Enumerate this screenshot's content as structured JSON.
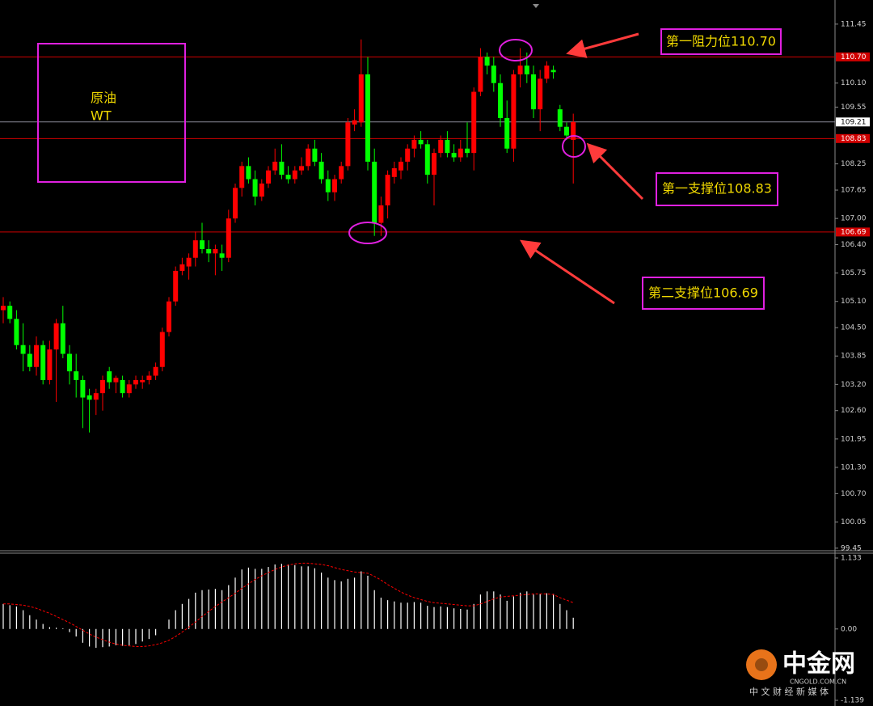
{
  "chart_data": [
    {
      "type": "candlestick",
      "instrument": [
        "原油",
        "WT"
      ],
      "annotations": [
        "第一阻力位110.70",
        "第一支撑位108.83",
        "第二支撑位106.69"
      ],
      "ylim": [
        99.41,
        111.91
      ],
      "yticks": [
        111.45,
        {
          "value": 110.1,
          "label": "110.10"
        },
        109.55,
        108.25,
        107.65,
        {
          "value": 107,
          "label": "107.00"
        },
        {
          "value": 106.4,
          "label": "106.40"
        },
        105.75,
        {
          "value": 105.1,
          "label": "105.10"
        },
        {
          "value": 104.5,
          "label": "104.50"
        },
        103.85,
        {
          "value": 103.2,
          "label": "103.20"
        },
        {
          "value": 102.6,
          "label": "102.60"
        },
        101.95,
        {
          "value": 101.3,
          "label": "101.30"
        },
        {
          "value": 100.7,
          "label": "100.70"
        },
        100.05,
        99.45
      ],
      "hlines": [
        {
          "value": 110.7,
          "label": "110.70",
          "color": "#d00000",
          "label_color": "#ffffff"
        },
        {
          "value": 109.21,
          "label": "109.21",
          "color": "#8a8a99",
          "label_color": "#000000"
        },
        {
          "value": 108.83,
          "label": "108.83",
          "color": "#d00000",
          "label_color": "#ffffff"
        },
        {
          "value": 106.69,
          "label": "106.69",
          "color": "#d00000",
          "label_color": "#ffffff"
        }
      ],
      "up_color": "#ff0000",
      "down_color": "#00ff00",
      "open": [
        104.9,
        105.0,
        104.7,
        104.1,
        103.9,
        103.6,
        104.1,
        103.3,
        104.0,
        104.6,
        103.9,
        103.5,
        103.3,
        102.95,
        102.85,
        103.0,
        103.5,
        103.25,
        103.3,
        103.0,
        103.2,
        103.25,
        103.3,
        103.4,
        103.6,
        104.4,
        105.1,
        105.8,
        105.9,
        106.1,
        106.5,
        106.3,
        106.2,
        106.2,
        106.1,
        107.0,
        107.7,
        108.2,
        107.9,
        107.5,
        107.8,
        108.1,
        108.3,
        108.0,
        107.9,
        108.1,
        108.2,
        108.6,
        108.3,
        107.9,
        107.6,
        107.9,
        108.2,
        109.15,
        109.2,
        110.3,
        108.3,
        106.9,
        107.3,
        107.95,
        108.1,
        108.3,
        108.6,
        108.8,
        108.7,
        108.0,
        108.5,
        108.8,
        108.5,
        108.4,
        108.6,
        108.5,
        109.9,
        110.7,
        110.5,
        110.1,
        109.3,
        108.6,
        110.3,
        110.5,
        110.3,
        109.5,
        110.2,
        110.4,
        109.5,
        109.1,
        108.8
      ],
      "high": [
        105.2,
        105.1,
        104.9,
        104.6,
        104.1,
        104.3,
        104.2,
        104.2,
        104.7,
        105.0,
        104.1,
        103.9,
        103.4,
        103.1,
        103.1,
        103.4,
        103.6,
        103.4,
        103.4,
        103.3,
        103.4,
        103.4,
        103.5,
        103.7,
        104.5,
        105.2,
        105.9,
        106.1,
        106.2,
        106.7,
        106.9,
        106.5,
        106.4,
        106.4,
        107.2,
        107.8,
        108.3,
        108.4,
        108.1,
        107.9,
        108.2,
        108.6,
        108.7,
        108.2,
        108.2,
        108.4,
        108.7,
        108.8,
        108.5,
        108.1,
        108.0,
        108.3,
        109.3,
        109.5,
        111.1,
        110.7,
        108.6,
        107.5,
        108.1,
        108.3,
        108.4,
        108.7,
        108.9,
        109.0,
        108.8,
        108.6,
        108.9,
        109.0,
        108.7,
        108.8,
        109.2,
        110.0,
        110.9,
        110.8,
        110.7,
        110.3,
        109.7,
        110.4,
        110.9,
        110.8,
        110.5,
        110.4,
        110.6,
        110.5,
        109.6,
        109.2,
        109.4
      ],
      "low": [
        104.6,
        104.6,
        104.0,
        103.5,
        103.5,
        103.4,
        103.2,
        103.2,
        102.8,
        103.8,
        103.2,
        102.9,
        102.2,
        102.1,
        102.5,
        102.6,
        103.1,
        103.0,
        102.9,
        102.9,
        103.1,
        103.1,
        103.2,
        103.3,
        103.5,
        104.3,
        105.0,
        105.7,
        105.6,
        105.9,
        106.2,
        106.0,
        105.7,
        105.8,
        106.0,
        106.9,
        107.5,
        107.8,
        107.3,
        107.4,
        107.7,
        108.0,
        107.9,
        107.8,
        107.8,
        108.0,
        108.1,
        108.2,
        107.8,
        107.4,
        107.4,
        107.8,
        108.1,
        109.0,
        109.1,
        108.1,
        106.6,
        106.6,
        107.0,
        107.8,
        107.9,
        108.1,
        108.4,
        108.6,
        107.8,
        107.3,
        108.4,
        108.4,
        108.3,
        108.3,
        108.4,
        108.1,
        109.8,
        110.3,
        109.9,
        109.1,
        108.5,
        108.3,
        110.0,
        110.1,
        109.3,
        109.0,
        110.1,
        110.2,
        109.0,
        108.8,
        107.8
      ],
      "close": [
        105.0,
        104.7,
        104.1,
        103.9,
        103.6,
        104.1,
        103.3,
        104.0,
        104.6,
        103.9,
        103.5,
        103.3,
        102.9,
        102.85,
        103.0,
        103.3,
        103.25,
        103.35,
        103.0,
        103.2,
        103.3,
        103.3,
        103.4,
        103.6,
        104.4,
        105.1,
        105.8,
        105.95,
        106.1,
        106.5,
        106.3,
        106.2,
        106.3,
        106.1,
        107.0,
        107.7,
        108.2,
        107.9,
        107.5,
        107.8,
        108.1,
        108.3,
        108.0,
        107.9,
        108.1,
        108.2,
        108.6,
        108.3,
        107.9,
        107.6,
        107.9,
        108.2,
        109.2,
        109.25,
        110.3,
        108.3,
        106.9,
        107.3,
        108.0,
        108.15,
        108.3,
        108.6,
        108.8,
        108.7,
        108.0,
        108.5,
        108.8,
        108.5,
        108.4,
        108.6,
        108.5,
        109.9,
        110.7,
        110.5,
        110.1,
        109.3,
        108.6,
        110.3,
        110.5,
        110.3,
        109.5,
        110.2,
        110.5,
        110.35,
        109.1,
        108.9,
        109.21
      ]
    },
    {
      "type": "macd",
      "ylim": [
        -1.139,
        1.133
      ],
      "yticks": [
        1.133,
        {
          "value": 0,
          "label": "0.00"
        },
        -1.139
      ],
      "histogram_color": "#ffffff",
      "signal_color": "#ff0000",
      "histogram": [
        0.4,
        0.38,
        0.36,
        0.3,
        0.22,
        0.15,
        0.08,
        0.03,
        0.02,
        0.01,
        -0.05,
        -0.12,
        -0.22,
        -0.28,
        -0.3,
        -0.29,
        -0.28,
        -0.26,
        -0.27,
        -0.26,
        -0.24,
        -0.2,
        -0.16,
        -0.1,
        0.0,
        0.15,
        0.3,
        0.4,
        0.48,
        0.58,
        0.62,
        0.63,
        0.64,
        0.62,
        0.7,
        0.82,
        0.95,
        0.98,
        0.96,
        0.96,
        0.99,
        1.03,
        1.04,
        1.03,
        1.02,
        1.0,
        1.0,
        0.97,
        0.9,
        0.82,
        0.78,
        0.76,
        0.8,
        0.82,
        0.92,
        0.85,
        0.62,
        0.5,
        0.46,
        0.44,
        0.42,
        0.42,
        0.43,
        0.42,
        0.37,
        0.35,
        0.36,
        0.35,
        0.33,
        0.32,
        0.31,
        0.4,
        0.55,
        0.6,
        0.6,
        0.55,
        0.45,
        0.52,
        0.58,
        0.6,
        0.55,
        0.56,
        0.57,
        0.56,
        0.4,
        0.3,
        0.18
      ],
      "signal": [
        0.4,
        0.4,
        0.39,
        0.38,
        0.36,
        0.33,
        0.29,
        0.25,
        0.2,
        0.15,
        0.1,
        0.04,
        -0.02,
        -0.08,
        -0.13,
        -0.17,
        -0.21,
        -0.24,
        -0.26,
        -0.27,
        -0.28,
        -0.28,
        -0.27,
        -0.25,
        -0.22,
        -0.18,
        -0.12,
        -0.05,
        0.03,
        0.11,
        0.2,
        0.28,
        0.36,
        0.43,
        0.5,
        0.57,
        0.65,
        0.72,
        0.79,
        0.85,
        0.9,
        0.95,
        0.99,
        1.02,
        1.04,
        1.05,
        1.05,
        1.04,
        1.03,
        1.01,
        0.98,
        0.95,
        0.93,
        0.91,
        0.9,
        0.89,
        0.84,
        0.78,
        0.71,
        0.65,
        0.59,
        0.54,
        0.5,
        0.47,
        0.44,
        0.42,
        0.41,
        0.4,
        0.39,
        0.38,
        0.37,
        0.37,
        0.4,
        0.44,
        0.48,
        0.51,
        0.52,
        0.53,
        0.54,
        0.55,
        0.56,
        0.56,
        0.56,
        0.55,
        0.5,
        0.46,
        0.42
      ]
    }
  ],
  "logo": {
    "name": "中金网",
    "domain": "CNGOLD.COM.CN",
    "slogan": "中 文 财 经 新 媒 体"
  }
}
